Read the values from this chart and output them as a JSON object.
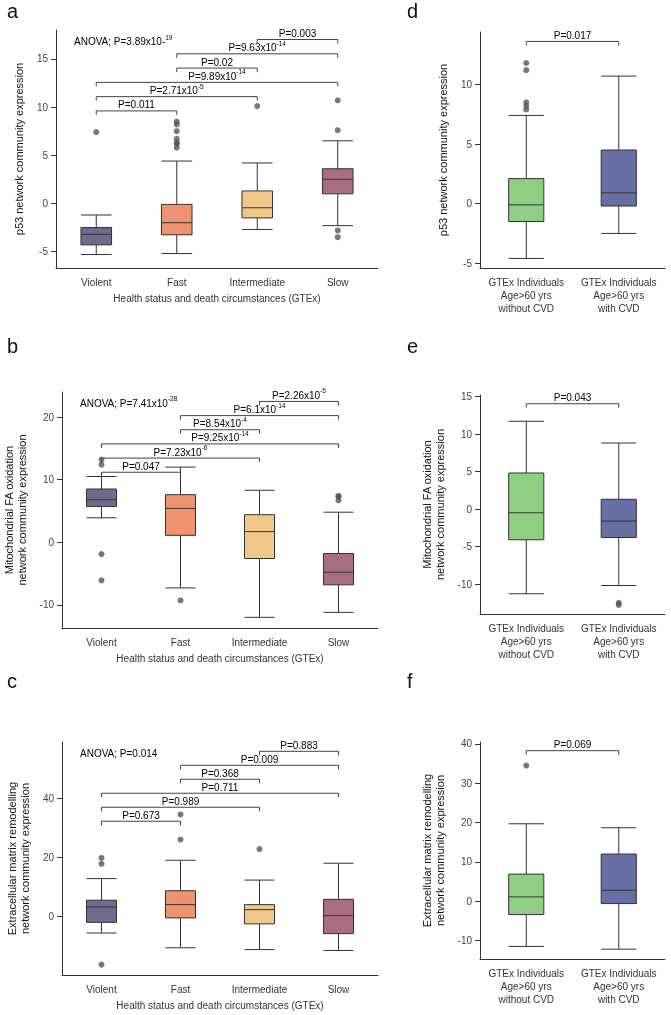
{
  "chart_data": [
    {
      "type": "box",
      "title": "a",
      "xlabel": "Health status and death circumstances (GTEx)",
      "ylabel": "p53 network community expression",
      "categories": [
        "Violent",
        "Fast",
        "Intermediate",
        "Slow"
      ],
      "colors": [
        "#6f6a8e",
        "#ef9270",
        "#f0c98a",
        "#a8707e"
      ],
      "boxes": [
        {
          "low": -5.3,
          "q1": -4.3,
          "median": -3.2,
          "q3": -2.5,
          "high": -1.2,
          "outliers": [
            7.4
          ]
        },
        {
          "low": -5.2,
          "q1": -3.25,
          "median": -2.0,
          "q3": -0.1,
          "high": 4.4,
          "outliers": [
            8.5,
            8.2,
            7.5,
            6.7,
            6.3,
            6.2,
            5.8
          ]
        },
        {
          "low": -2.7,
          "q1": -1.5,
          "median": -0.45,
          "q3": 1.3,
          "high": 4.2,
          "outliers": [
            10.1
          ]
        },
        {
          "low": -2.3,
          "q1": 1.0,
          "median": 2.5,
          "q3": 3.6,
          "high": 6.5,
          "outliers": [
            10.7,
            7.6,
            -2.8,
            -3.5
          ]
        }
      ],
      "ylim": [
        -6.7,
        18
      ],
      "yticks": [
        -5,
        0,
        5,
        10,
        15
      ],
      "annotations": [
        "ANOVA; P=3.89x10-$^{19}$",
        "P=0.011",
        "P=2.71x10$^{-5}$",
        "P=9.89x10$^{-14}$",
        "P=0.02",
        "P=9.63x10$^{-14}$",
        "P=0.003"
      ]
    },
    {
      "type": "box",
      "title": "d",
      "ylabel": "p53 network community expression",
      "categories": [
        "GTEx Individuals\nAge>60 yrs\nwithout CVD",
        "GTEx Individuals\nAge>60 yrs\nwith CVD"
      ],
      "colors": [
        "#8fcf84",
        "#6670a4"
      ],
      "boxes": [
        {
          "low": -4.6,
          "q1": -1.5,
          "median": -0.1,
          "q3": 2.1,
          "high": 7.4,
          "outliers": [
            11.8,
            11.2,
            8.5,
            8.2,
            7.9
          ]
        },
        {
          "low": -2.5,
          "q1": -0.2,
          "median": 0.9,
          "q3": 4.5,
          "high": 10.7
        }
      ],
      "ylim": [
        -5.4,
        14.4
      ],
      "yticks": [
        -5,
        0,
        5,
        10
      ],
      "annotations": [
        "P=0.017"
      ]
    },
    {
      "type": "box",
      "title": "b",
      "xlabel": "Health status and death circumstances (GTEx)",
      "ylabel": "Mitochondrial FA oxidation\nnetwork community expression",
      "categories": [
        "Violent",
        "Fast",
        "Intermediate",
        "Slow"
      ],
      "colors": [
        "#6f6a8e",
        "#ef9270",
        "#f0c98a",
        "#a8707e"
      ],
      "boxes": [
        {
          "low": 3.9,
          "q1": 5.7,
          "median": 6.8,
          "q3": 8.5,
          "high": 10.5,
          "outliers": [
            13.2,
            12.4,
            -1.9,
            -6.1
          ]
        },
        {
          "low": -7.3,
          "q1": 1.1,
          "median": 5.4,
          "q3": 7.6,
          "high": 12,
          "outliers": [
            -9.3
          ]
        },
        {
          "low": -12,
          "q1": -2.6,
          "median": 1.7,
          "q3": 4.4,
          "high": 8.3
        },
        {
          "low": -11.2,
          "q1": -6.8,
          "median": -4.8,
          "q3": -1.8,
          "high": 4.8,
          "outliers": [
            7.4,
            7.3,
            6.7
          ]
        }
      ],
      "ylim": [
        -13.7,
        24
      ],
      "yticks": [
        -10,
        0,
        10,
        20
      ],
      "annotations": [
        "ANOVA; P=7.41x10$^{-28}$",
        "P=0.047",
        "P=7.23x10$^{-6}$",
        "P=9.25x10$^{-14}$",
        "P=8.54x10$^{-4}$",
        "P=6.1x10$^{-14}$",
        "P=2.26x10$^{-5}$"
      ]
    },
    {
      "type": "box",
      "title": "e",
      "ylabel": "Mitochondrial FA oxidation\nnetwork community expression",
      "categories": [
        "GTEx Individuals\nAge>60 yrs\nwithout CVD",
        "GTEx Individuals\nAge>60 yrs\nwith CVD"
      ],
      "colors": [
        "#8fcf84",
        "#6670a4"
      ],
      "boxes": [
        {
          "low": -11.3,
          "q1": -4.1,
          "median": -0.5,
          "q3": 4.8,
          "high": 11.7
        },
        {
          "low": -10.2,
          "q1": -3.8,
          "median": -1.6,
          "q3": 1.3,
          "high": 8.8,
          "outliers": [
            -12.5,
            -12.8
          ]
        }
      ],
      "ylim": [
        -14,
        15.2
      ],
      "yticks": [
        -10,
        -5,
        0,
        5,
        10,
        15
      ],
      "annotations": [
        "P=0.043"
      ]
    },
    {
      "type": "box",
      "title": "c",
      "xlabel": "Health status and death circumstances (GTEx)",
      "ylabel": "Extracellular matrix remodelling\nnetwork community expression",
      "categories": [
        "Violent",
        "Fast",
        "Intermediate",
        "Slow"
      ],
      "colors": [
        "#6f6a8e",
        "#ef9270",
        "#f0c98a",
        "#a8707e"
      ],
      "boxes": [
        {
          "low": -5.6,
          "q1": -2.0,
          "median": 3.2,
          "q3": 5.5,
          "high": 12.8,
          "outliers": [
            19.8,
            17.8,
            -16.3
          ]
        },
        {
          "low": -10.6,
          "q1": -0.5,
          "median": 4.0,
          "q3": 8.7,
          "high": 19,
          "outliers": [
            34.5,
            26
          ]
        },
        {
          "low": -11.2,
          "q1": -2.5,
          "median": 2.3,
          "q3": 4.0,
          "high": 12.3,
          "outliers": [
            22.8
          ]
        },
        {
          "low": -11.5,
          "q1": -5.8,
          "median": 0.3,
          "q3": 5.8,
          "high": 18
        }
      ],
      "ylim": [
        -19.8,
        59
      ],
      "yticks": [
        0,
        20,
        40
      ],
      "annotations": [
        "ANOVA; P=0.014",
        "P=0.673",
        "P=0.989",
        "P=0.711",
        "P=0.368",
        "P=0.009",
        "P=0.883"
      ]
    },
    {
      "type": "box",
      "title": "f",
      "ylabel": "Extracellular matrix remodelling\nnetwork community expression",
      "categories": [
        "GTEx Individuals\nAge>60 yrs\nwithout CVD",
        "GTEx Individuals\nAge>60 yrs\nwith CVD"
      ],
      "colors": [
        "#8fcf84",
        "#6670a4"
      ],
      "boxes": [
        {
          "low": -11.5,
          "q1": -3.4,
          "median": 1.1,
          "q3": 6.9,
          "high": 19.7,
          "outliers": [
            34.5
          ]
        },
        {
          "low": -12.2,
          "q1": -0.6,
          "median": 2.8,
          "q3": 12.0,
          "high": 18.7
        }
      ],
      "ylim": [
        -14.7,
        40.5
      ],
      "yticks": [
        -10,
        0,
        10,
        20,
        30,
        40
      ],
      "annotations": [
        "P=0.069"
      ]
    }
  ]
}
